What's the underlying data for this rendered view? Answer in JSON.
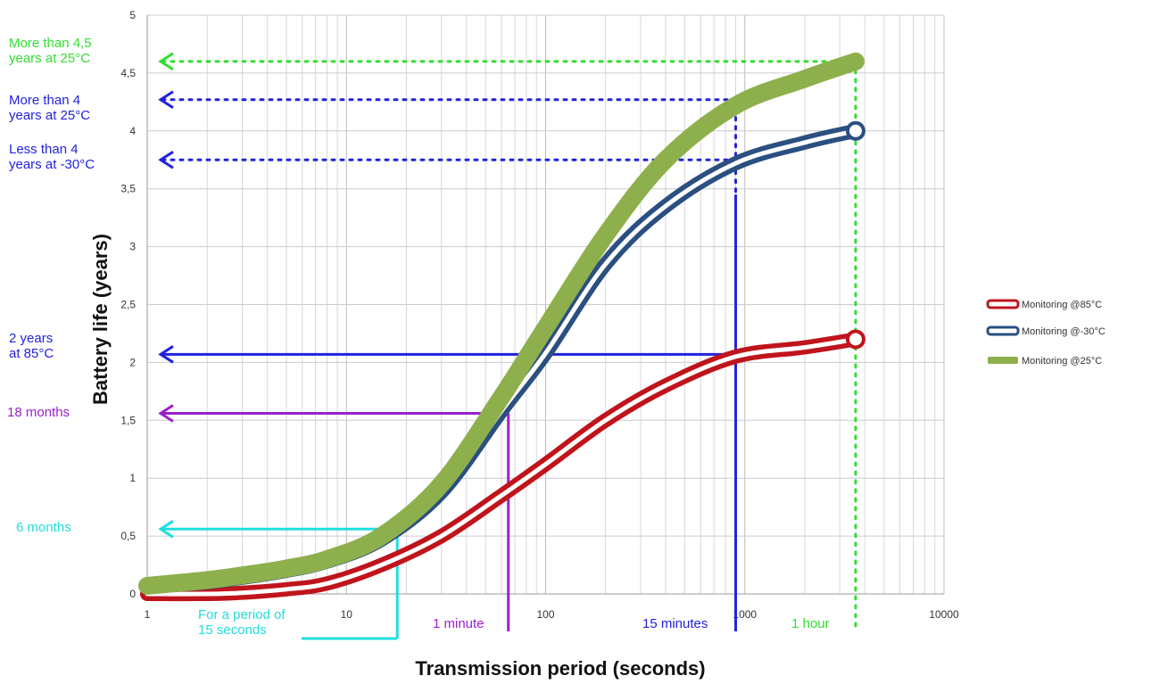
{
  "chart_data": {
    "type": "line",
    "xlabel": "Transmission period (seconds)",
    "ylabel": "Battery life (years)",
    "xscale": "log",
    "xlim": [
      1,
      10000
    ],
    "ylim": [
      0,
      5
    ],
    "grid": true,
    "legend_position": "right",
    "x_ticks": [
      "1",
      "10",
      "100",
      "1000",
      "10000"
    ],
    "y_ticks": [
      "0",
      "0,5",
      "1",
      "1,5",
      "2",
      "2,5",
      "3",
      "3,5",
      "4",
      "4,5",
      "5"
    ],
    "series": [
      {
        "name": "Monitoring @85°C",
        "color": "#c0141c",
        "style": "hollow",
        "x": [
          1,
          2,
          3,
          5,
          8,
          15,
          30,
          60,
          100,
          200,
          400,
          900,
          2000,
          3600
        ],
        "y": [
          0.0,
          0.0,
          0.01,
          0.04,
          0.09,
          0.25,
          0.5,
          0.85,
          1.12,
          1.5,
          1.8,
          2.05,
          2.13,
          2.2
        ]
      },
      {
        "name": "Monitoring @-30°C",
        "color": "#2a4f80",
        "style": "hollow",
        "x": [
          1,
          2,
          3,
          5,
          8,
          15,
          30,
          60,
          100,
          200,
          400,
          900,
          2000,
          3600
        ],
        "y": [
          0.06,
          0.1,
          0.14,
          0.2,
          0.28,
          0.47,
          0.88,
          1.58,
          2.08,
          2.85,
          3.35,
          3.72,
          3.9,
          4.0
        ]
      },
      {
        "name": "Monitoring @25°C",
        "color": "#8db04c",
        "style": "solid",
        "x": [
          1,
          2,
          3,
          5,
          8,
          15,
          30,
          60,
          100,
          200,
          400,
          900,
          2000,
          3600
        ],
        "y": [
          0.07,
          0.12,
          0.16,
          0.22,
          0.3,
          0.5,
          0.95,
          1.7,
          2.3,
          3.1,
          3.75,
          4.22,
          4.45,
          4.6
        ]
      }
    ],
    "annotations": [
      {
        "text_lines": [
          "More than 4,5",
          "years at 25°C"
        ],
        "color": "#33dd33",
        "y": 4.6,
        "x_drop": 3600,
        "style": "dotted"
      },
      {
        "text_lines": [
          "More than 4",
          "years at 25°C"
        ],
        "color": "#2222dd",
        "y": 4.27,
        "x_drop": 900,
        "style": "dotted"
      },
      {
        "text_lines": [
          "Less than 4",
          "years at -30°C"
        ],
        "color": "#2222dd",
        "y": 3.75,
        "style": "dotted"
      },
      {
        "text_lines": [
          "2 years",
          "at 85°C"
        ],
        "color": "#2222dd",
        "y": 2.07,
        "style": "solid"
      },
      {
        "text_lines": [
          "18 months"
        ],
        "color": "#9922cc",
        "y": 1.56,
        "x_drop": 65,
        "style": "solid"
      },
      {
        "text_lines": [
          "6 months"
        ],
        "color": "#22dddd",
        "y": 0.56,
        "x_drop": 18,
        "style": "solid"
      }
    ],
    "period_labels": [
      {
        "text_lines": [
          "For a period of",
          "15 seconds"
        ],
        "color": "#22dddd"
      },
      {
        "text_lines": [
          "1 minute"
        ],
        "color": "#9922cc"
      },
      {
        "text_lines": [
          "15 minutes"
        ],
        "color": "#2222dd"
      },
      {
        "text_lines": [
          "1 hour"
        ],
        "color": "#33dd33"
      }
    ]
  }
}
